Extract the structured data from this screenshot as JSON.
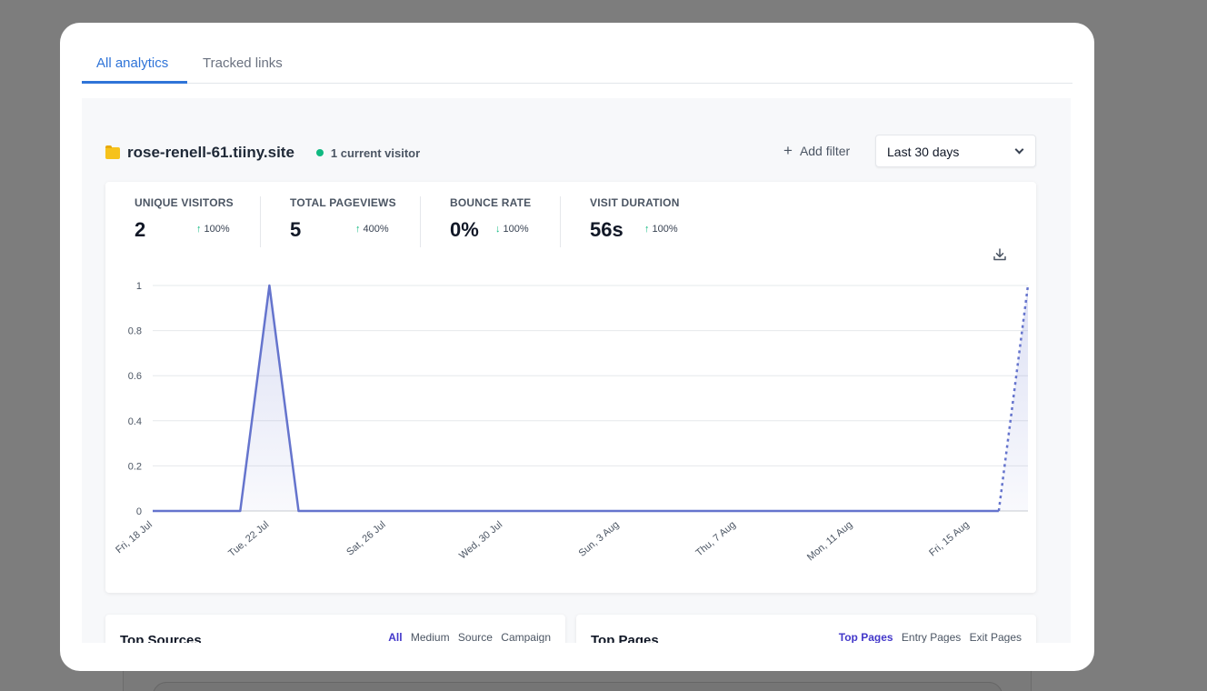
{
  "tabs": [
    {
      "label": "All analytics",
      "active": true
    },
    {
      "label": "Tracked links",
      "active": false
    }
  ],
  "site": {
    "name": "rose-renell-61.tiiny.site",
    "current_visitors": "1 current visitor",
    "folder_color": "#f6c21b",
    "status_color": "#10b981"
  },
  "filter": {
    "add_label": "Add filter",
    "period": "Last 30 days"
  },
  "stats": [
    {
      "label": "UNIQUE VISITORS",
      "value": "2",
      "direction": "up",
      "change": "100%"
    },
    {
      "label": "TOTAL PAGEVIEWS",
      "value": "5",
      "direction": "up",
      "change": "400%"
    },
    {
      "label": "BOUNCE RATE",
      "value": "0%",
      "direction": "down",
      "change": "100%"
    },
    {
      "label": "VISIT DURATION",
      "value": "56s",
      "direction": "up",
      "change": "100%"
    }
  ],
  "chart_data": {
    "type": "line",
    "x": [
      "18 Jul",
      "19 Jul",
      "20 Jul",
      "21 Jul",
      "22 Jul",
      "23 Jul",
      "24 Jul",
      "25 Jul",
      "26 Jul",
      "27 Jul",
      "28 Jul",
      "29 Jul",
      "30 Jul",
      "31 Jul",
      "1 Aug",
      "2 Aug",
      "3 Aug",
      "4 Aug",
      "5 Aug",
      "6 Aug",
      "7 Aug",
      "8 Aug",
      "9 Aug",
      "10 Aug",
      "11 Aug",
      "12 Aug",
      "13 Aug",
      "14 Aug",
      "15 Aug",
      "16 Aug",
      "17 Aug"
    ],
    "x_tick_labels": [
      "Fri, 18 Jul",
      "Tue, 22 Jul",
      "Sat, 26 Jul",
      "Wed, 30 Jul",
      "Sun, 3 Aug",
      "Thu, 7 Aug",
      "Mon, 11 Aug",
      "Fri, 15 Aug"
    ],
    "series": [
      {
        "values": [
          0,
          0,
          0,
          0,
          1,
          0,
          0,
          0,
          0,
          0,
          0,
          0,
          0,
          0,
          0,
          0,
          0,
          0,
          0,
          0,
          0,
          0,
          0,
          0,
          0,
          0,
          0,
          0,
          0,
          0,
          1
        ],
        "partial_last": true
      }
    ],
    "y_ticks": [
      "0",
      "0.2",
      "0.4",
      "0.6",
      "0.8",
      "1"
    ],
    "ylim": [
      0,
      1
    ],
    "grid": true,
    "line_color": "#6574cd"
  },
  "top_sources": {
    "title": "Top Sources",
    "tabs": [
      "All",
      "Medium",
      "Source",
      "Campaign"
    ],
    "active": "All"
  },
  "top_pages": {
    "title": "Top Pages",
    "tabs": [
      "Top Pages",
      "Entry Pages",
      "Exit Pages"
    ],
    "active": "Top Pages"
  }
}
